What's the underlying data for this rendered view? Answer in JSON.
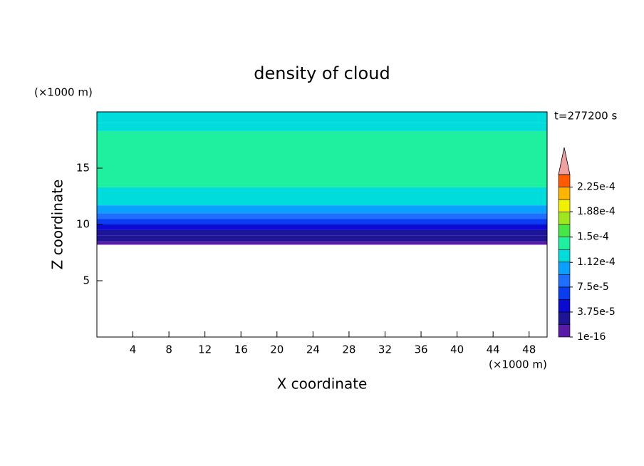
{
  "chart_data": {
    "type": "contour",
    "title": "density of cloud",
    "x_label": "X coordinate",
    "y_label": "Z coordinate",
    "x_unit": "(×1000 m)",
    "y_unit": "(×1000 m)",
    "time_label": "t=277200 s",
    "xlim": [
      0,
      50
    ],
    "ylim": [
      0,
      20
    ],
    "xticks": [
      4,
      8,
      12,
      16,
      20,
      24,
      28,
      32,
      36,
      40,
      44,
      48
    ],
    "yticks": [
      5,
      10,
      15
    ],
    "y_bins": [
      8.2,
      8.5,
      9.0,
      9.5,
      10.0,
      10.5,
      11.0,
      11.7,
      12.5,
      13.3,
      18.3,
      19.0,
      20
    ],
    "values": [
      5e-06,
      2.5e-05,
      3.5e-05,
      5e-05,
      6.5e-05,
      8e-05,
      0.0001,
      0.000115,
      0.00013,
      0.000145,
      0.00013,
      0.000115
    ],
    "levels": [
      1e-16,
      1.875e-05,
      3.75e-05,
      5.625e-05,
      7.5e-05,
      9.375e-05,
      0.0001125,
      0.00013125,
      0.00015,
      0.00016875,
      0.0001875,
      0.00020625,
      0.000225,
      0.00024375
    ],
    "colors": [
      "#5a1aa8",
      "#1e1496",
      "#0a0ad2",
      "#0a3cf0",
      "#1e6eff",
      "#0aa0ff",
      "#00dcdc",
      "#1ef0a0",
      "#46e646",
      "#a0e61e",
      "#f0f000",
      "#ffb400",
      "#ff5a00"
    ],
    "extend_color": "#f0a0a0",
    "colorbar_ticks": [
      {
        "value": 1e-16,
        "label": "1e-16"
      },
      {
        "value": 3.75e-05,
        "label": "3.75e-5"
      },
      {
        "value": 7.5e-05,
        "label": "7.5e-5"
      },
      {
        "value": 0.000112,
        "label": "1.12e-4"
      },
      {
        "value": 0.00015,
        "label": "1.5e-4"
      },
      {
        "value": 0.000188,
        "label": "1.88e-4"
      },
      {
        "value": 0.000225,
        "label": "2.25e-4"
      }
    ]
  }
}
